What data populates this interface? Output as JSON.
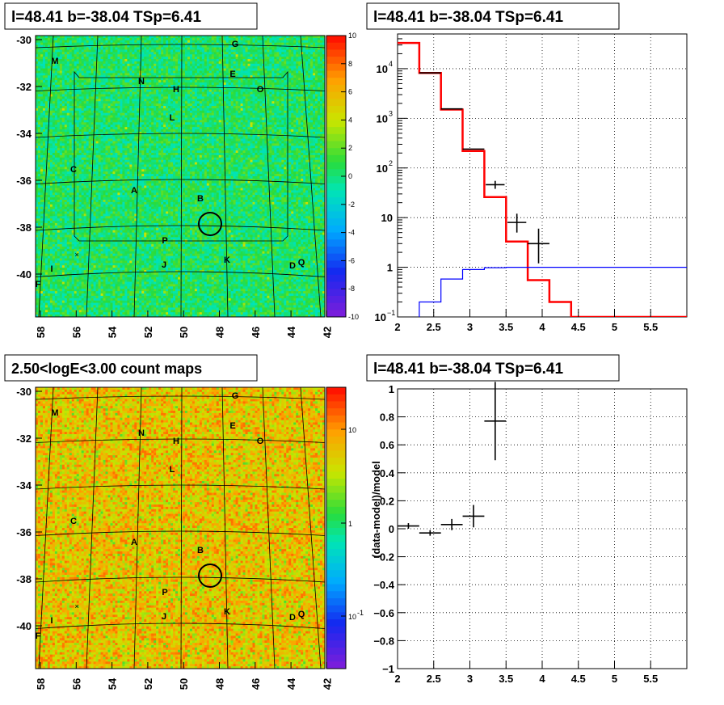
{
  "panels": {
    "tl": {
      "title": "l=48.41 b=-38.04 TSp=6.41",
      "yticks": [
        "-30",
        "-32",
        "-34",
        "-36",
        "-38",
        "-40"
      ],
      "xticks": [
        "58",
        "56",
        "54",
        "52",
        "50",
        "48",
        "46",
        "44",
        "42"
      ],
      "zticks": [
        "10",
        "8",
        "6",
        "4",
        "2",
        "0",
        "-2",
        "-4",
        "-6",
        "-8",
        "-10"
      ]
    },
    "tr": {
      "title": "l=48.41 b=-38.04 TSp=6.41",
      "xticks": [
        "2",
        "2.5",
        "3",
        "3.5",
        "4",
        "4.5",
        "5",
        "5.5"
      ],
      "yticks": [
        "10",
        "10",
        "10",
        "10",
        "10",
        "1"
      ],
      "yexp": [
        "-1",
        "4",
        "3",
        "2",
        "",
        ""
      ]
    },
    "bl": {
      "title": "2.50<logE<3.00 count maps",
      "yticks": [
        "-30",
        "-32",
        "-34",
        "-36",
        "-38",
        "-40"
      ],
      "xticks": [
        "58",
        "56",
        "54",
        "52",
        "50",
        "48",
        "46",
        "44",
        "42"
      ],
      "zticks": [
        "10",
        "1",
        "10"
      ],
      "zexp": [
        "-1"
      ]
    },
    "br": {
      "title": "l=48.41 b=-38.04 TSp=6.41",
      "ylabel": "(data-model)/model",
      "xticks": [
        "2",
        "2.5",
        "3",
        "3.5",
        "4",
        "4.5",
        "5",
        "5.5"
      ],
      "yticks": [
        "1",
        "0.8",
        "0.6",
        "0.4",
        "0.2",
        "0",
        "-0.2",
        "-0.4",
        "-0.6",
        "-0.8",
        "-1"
      ]
    }
  },
  "source_labels": [
    "M",
    "G",
    "E",
    "N",
    "H",
    "O",
    "L",
    "C",
    "A",
    "B",
    "P",
    "K",
    "J",
    "I",
    "D",
    "Q",
    "F"
  ],
  "chart_data": [
    {
      "type": "heatmap",
      "title": "l=48.41 b=-38.04 TSp=6.41",
      "xlim": [
        58,
        42
      ],
      "ylim": [
        -41.6,
        -29.7
      ],
      "zlim": [
        -10,
        10
      ],
      "colors": {
        "palette": "rainbow"
      },
      "sources": [
        {
          "name": "M",
          "l": 57.0,
          "b": -30.9
        },
        {
          "name": "G",
          "l": 47.8,
          "b": -30.2
        },
        {
          "name": "E",
          "l": 47.6,
          "b": -31.4
        },
        {
          "name": "N",
          "l": 52.3,
          "b": -31.7
        },
        {
          "name": "H",
          "l": 50.7,
          "b": -32.0
        },
        {
          "name": "O",
          "l": 45.5,
          "b": -32.0
        },
        {
          "name": "L",
          "l": 51.1,
          "b": -33.5
        },
        {
          "name": "C",
          "l": 56.3,
          "b": -35.6
        },
        {
          "name": "A",
          "l": 53.0,
          "b": -36.3
        },
        {
          "name": "B",
          "l": 49.0,
          "b": -36.6
        },
        {
          "name": "P",
          "l": 51.2,
          "b": -38.6
        },
        {
          "name": "K",
          "l": 47.4,
          "b": -39.4
        },
        {
          "name": "J",
          "l": 51.3,
          "b": -39.6
        },
        {
          "name": "I",
          "l": 57.8,
          "b": -39.9
        },
        {
          "name": "D",
          "l": 44.2,
          "b": -39.6
        },
        {
          "name": "Q",
          "l": 43.5,
          "b": -39.5
        },
        {
          "name": "F",
          "l": 58.1,
          "b": -40.4
        }
      ],
      "circle": {
        "l": 48.41,
        "b": -38.04
      }
    },
    {
      "type": "line",
      "title": "l=48.41 b=-38.04 TSp=6.41",
      "xlim": [
        2,
        6
      ],
      "ylim": [
        0.1,
        50000
      ],
      "yscale": "log",
      "grid": true,
      "series": [
        {
          "color": "#ff0000",
          "edges": [
            2,
            2.3,
            2.6,
            2.9,
            3.2,
            3.5,
            3.8,
            4.1,
            4.4,
            6
          ],
          "values": [
            33000,
            8200,
            1500,
            220,
            26,
            3.3,
            0.55,
            0.2,
            0.1
          ]
        },
        {
          "color": "#0000ff",
          "edges": [
            2.3,
            2.6,
            2.9,
            3.2,
            3.5,
            6
          ],
          "values": [
            0.2,
            0.58,
            0.9,
            0.98,
            1.0
          ]
        }
      ],
      "points": [
        {
          "x": 2.45,
          "y": 8200,
          "xerr": 0.15
        },
        {
          "x": 2.75,
          "y": 1550,
          "xerr": 0.15
        },
        {
          "x": 3.05,
          "y": 240,
          "xerr": 0.15
        },
        {
          "x": 3.35,
          "y": 46,
          "xerr": 0.13,
          "ylo": 38,
          "yhi": 55
        },
        {
          "x": 3.65,
          "y": 8,
          "xerr": 0.13,
          "ylo": 5,
          "yhi": 12
        },
        {
          "x": 3.95,
          "y": 3,
          "xerr": 0.15,
          "ylo": 1.2,
          "yhi": 6
        }
      ]
    },
    {
      "type": "heatmap",
      "title": "2.50<logE<3.00 count maps",
      "xlim": [
        58,
        42
      ],
      "ylim": [
        -41.6,
        -29.7
      ],
      "zscale": "log",
      "colors": {
        "palette": "rainbow"
      }
    },
    {
      "type": "scatter",
      "title": "l=48.41 b=-38.04 TSp=6.41",
      "ylabel": "(data-model)/model",
      "xlim": [
        2,
        6
      ],
      "ylim": [
        -1,
        1
      ],
      "grid": true,
      "points": [
        {
          "x": 2.15,
          "y": 0.02,
          "xerr": 0.15,
          "yerr": 0.02
        },
        {
          "x": 2.45,
          "y": -0.03,
          "xerr": 0.15,
          "yerr": 0.02
        },
        {
          "x": 2.75,
          "y": 0.03,
          "xerr": 0.15,
          "yerr": 0.04
        },
        {
          "x": 3.05,
          "y": 0.09,
          "xerr": 0.15,
          "yerr": 0.08
        },
        {
          "x": 3.35,
          "y": 0.77,
          "xerr": 0.15,
          "yerr": 0.28
        }
      ]
    }
  ]
}
